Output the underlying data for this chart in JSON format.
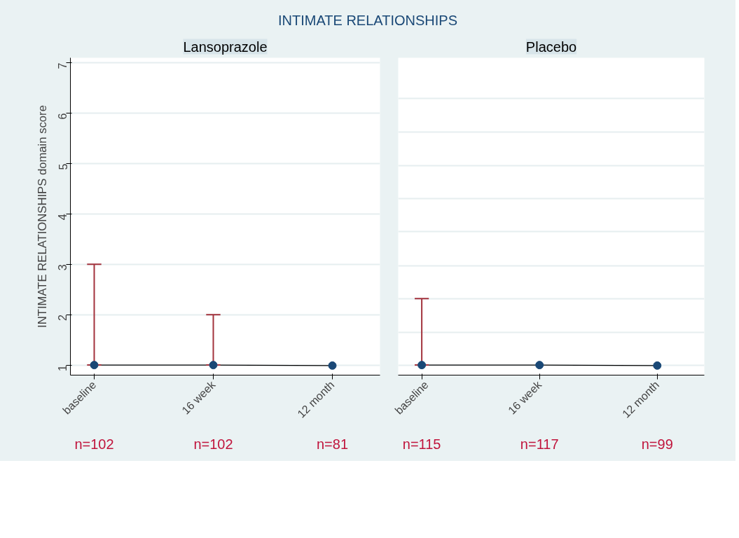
{
  "chart_data": [
    {
      "type": "line",
      "title": "Lansoprazole",
      "ylabel": "INTIMATE RELATIONSHIPS domain score",
      "annotations": [
        "INTIMATE RELATIONSHIPS",
        "n=102",
        "n=102",
        "n=81"
      ],
      "categories": [
        "baseline",
        "16 week",
        "12 month"
      ],
      "ylim": [
        0.8,
        7.1
      ],
      "yticks": [
        1,
        2,
        3,
        4,
        5,
        6,
        7
      ],
      "grid": "y",
      "marker": "circle",
      "series": [
        {
          "color": "#1a4876",
          "values": [
            1,
            1,
            0.99
          ],
          "errors": [
            [
              1,
              3
            ],
            [
              1,
              2
            ],
            null
          ]
        }
      ]
    },
    {
      "type": "line",
      "title": "Placebo",
      "annotations": [
        "n=115",
        "n=117",
        "n=99"
      ],
      "categories": [
        "baseline",
        "16 week",
        "12 month"
      ],
      "ylim": [
        0.8,
        7.1
      ],
      "yticks": [
        {
          "value": 1,
          "label": null
        },
        {
          "value": 1.65,
          "label": null
        },
        {
          "value": 2.32,
          "label": null
        },
        {
          "value": 2.97,
          "label": null
        },
        {
          "value": 3.65,
          "label": null
        },
        {
          "value": 4.3,
          "label": null
        },
        {
          "value": 4.96,
          "label": null
        },
        {
          "value": 5.62,
          "label": null
        },
        {
          "value": 6.29,
          "label": null
        }
      ],
      "tick_labels": "x",
      "grid": "y",
      "marker": "circle",
      "series": [
        {
          "color": "#1a4876",
          "values": [
            1,
            1,
            0.99
          ],
          "errors": [
            [
              1,
              2.32
            ],
            null,
            null
          ]
        }
      ]
    }
  ]
}
